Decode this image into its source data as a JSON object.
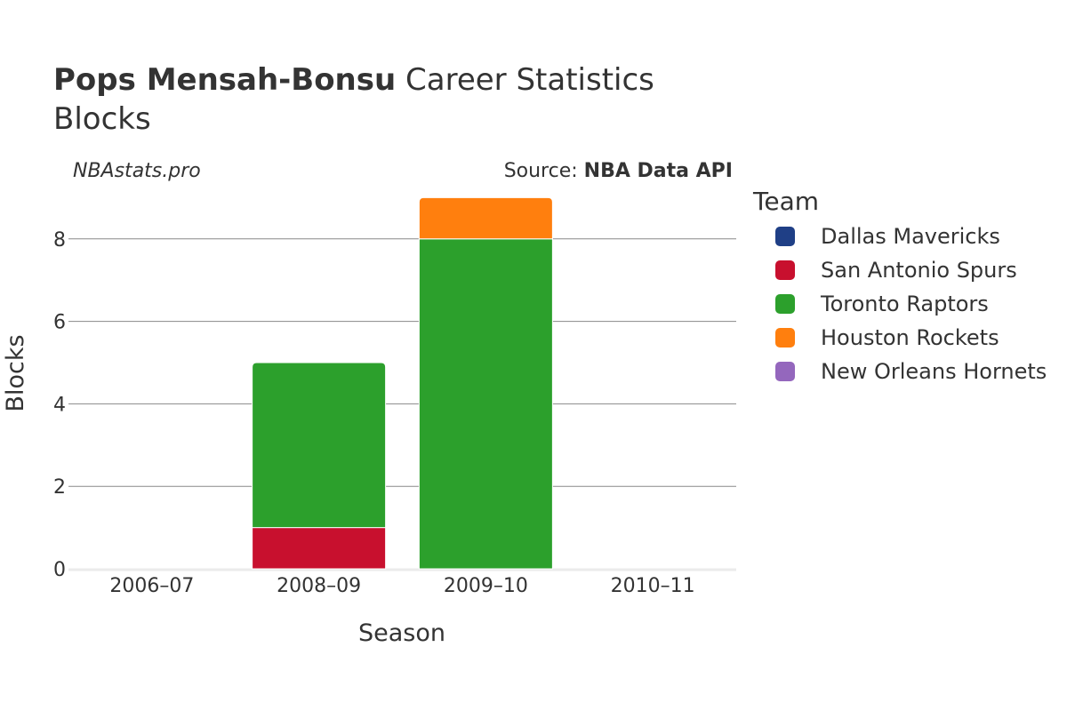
{
  "title": {
    "player": "Pops Mensah-Bonsu",
    "suffix": "Career Statistics",
    "subtitle": "Blocks"
  },
  "credits": {
    "site": "NBAstats.pro",
    "source_prefix": "Source: ",
    "source_name": "NBA Data API"
  },
  "chart_data": {
    "type": "bar",
    "stacked": true,
    "categories": [
      "2006–07",
      "2008–09",
      "2009–10",
      "2010–11"
    ],
    "series": [
      {
        "name": "Dallas Mavericks",
        "color": "#1f3f86",
        "values": [
          0,
          0,
          0,
          0
        ]
      },
      {
        "name": "San Antonio Spurs",
        "color": "#c8102e",
        "values": [
          0,
          1,
          0,
          0
        ]
      },
      {
        "name": "Toronto Raptors",
        "color": "#2ca02c",
        "values": [
          0,
          4,
          8,
          0
        ]
      },
      {
        "name": "Houston Rockets",
        "color": "#ff7f0e",
        "values": [
          0,
          0,
          1,
          0
        ]
      },
      {
        "name": "New Orleans Hornets",
        "color": "#9467bd",
        "values": [
          0,
          0,
          0,
          0
        ]
      }
    ],
    "xlabel": "Season",
    "ylabel": "Blocks",
    "ylim": [
      0,
      9.5
    ],
    "yticks": [
      0,
      2,
      4,
      6,
      8
    ],
    "legend_title": "Team",
    "legend_position": "right"
  }
}
